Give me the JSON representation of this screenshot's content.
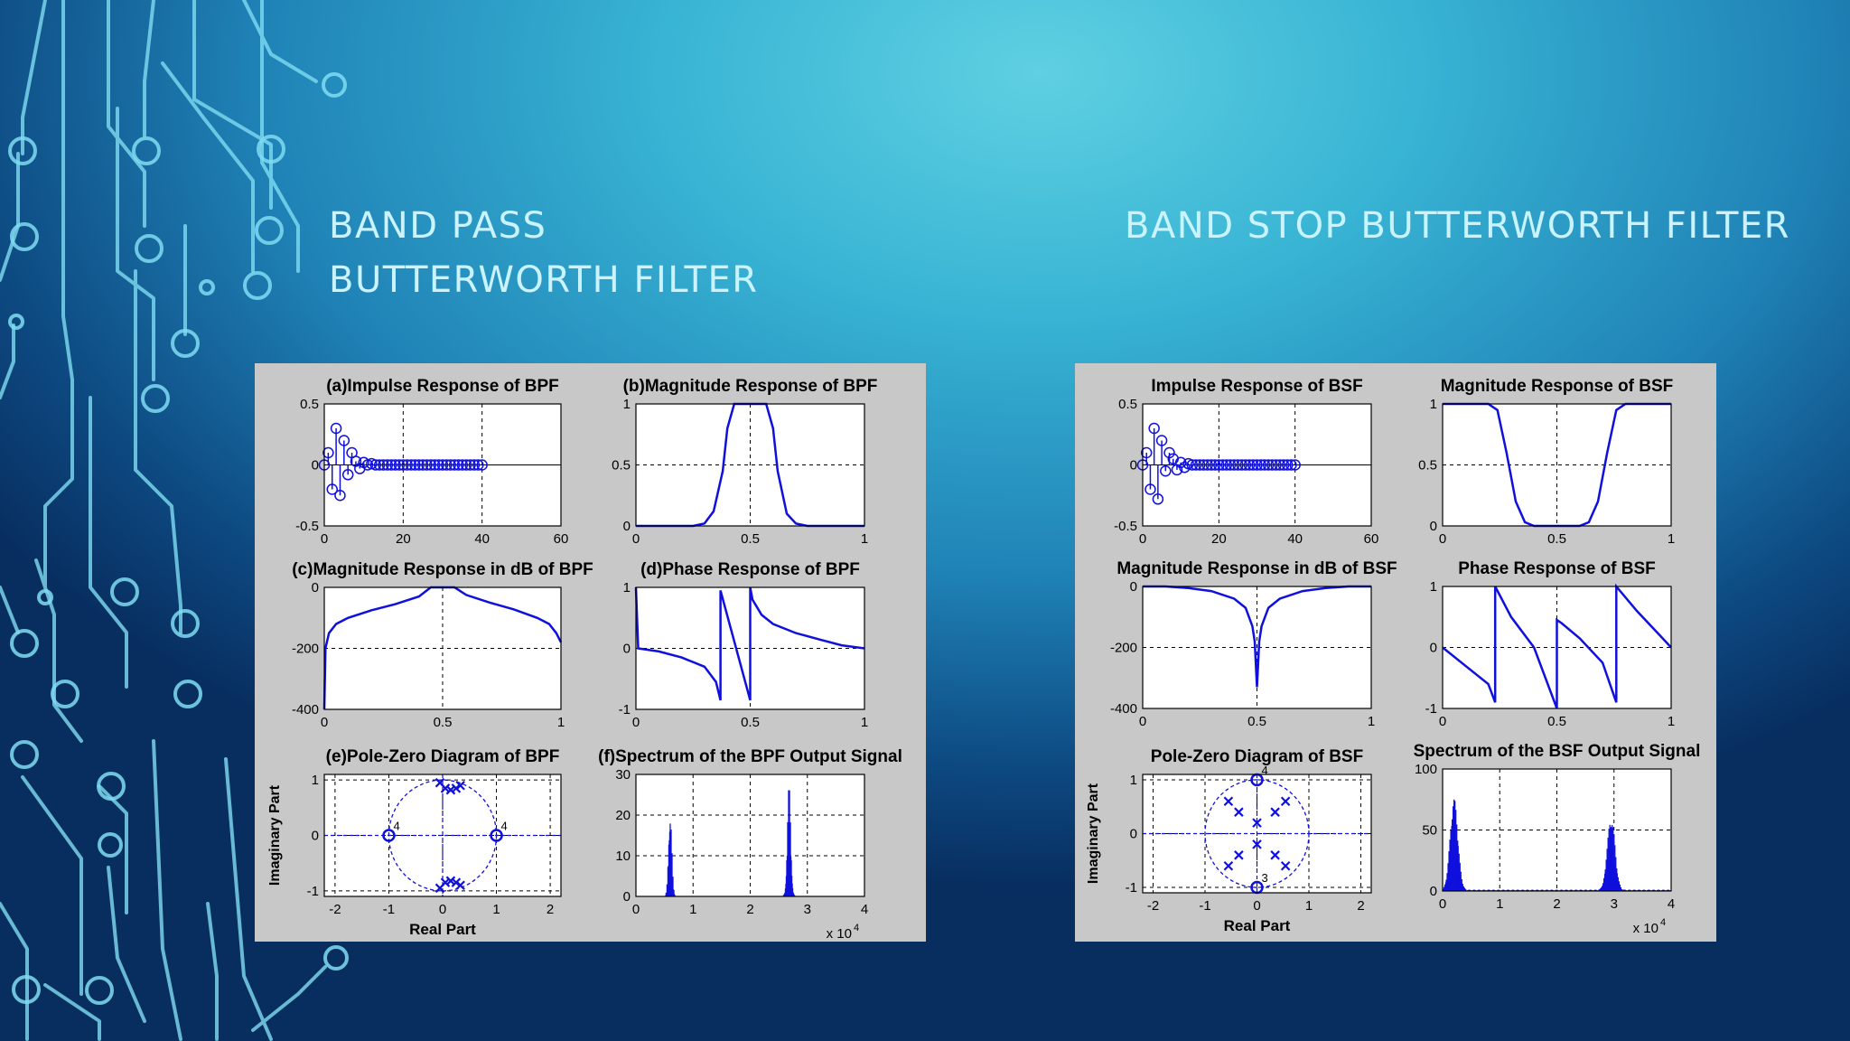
{
  "slide": {
    "left_title": "BAND PASS BUTTERWORTH FILTER",
    "right_title": "BAND STOP BUTTERWORTH FILTER"
  },
  "colors": {
    "trace": "#1010dd",
    "panel": "#c8c8c8",
    "title": "#c8f3ff"
  },
  "chart_data": [
    {
      "id": "bpf-a",
      "type": "stem",
      "title": "(a)Impulse Response of BPF",
      "xlim": [
        0,
        60
      ],
      "ylim": [
        -0.5,
        0.5
      ],
      "xticks": [
        "0",
        "20",
        "40",
        "60"
      ],
      "yticks": [
        "0.5",
        "0",
        "-0.5"
      ],
      "x": [
        0,
        1,
        2,
        3,
        4,
        5,
        6,
        7,
        8,
        9,
        10,
        11,
        12,
        13,
        14,
        15,
        16,
        17,
        18,
        19,
        20,
        21,
        22,
        23,
        24,
        25,
        26,
        27,
        28,
        29,
        30,
        31,
        32,
        33,
        34,
        35,
        36,
        37,
        38,
        39,
        40
      ],
      "values": [
        0,
        0.1,
        -0.2,
        0.3,
        -0.25,
        0.2,
        -0.08,
        0.1,
        0.03,
        -0.03,
        0.02,
        0,
        0.01,
        0,
        0,
        0,
        0,
        0,
        0,
        0,
        0,
        0,
        0,
        0,
        0,
        0,
        0,
        0,
        0,
        0,
        0,
        0,
        0,
        0,
        0,
        0,
        0,
        0,
        0,
        0,
        0
      ]
    },
    {
      "id": "bpf-b",
      "type": "line",
      "title": "(b)Magnitude Response of BPF",
      "xlim": [
        0,
        1
      ],
      "ylim": [
        0,
        1
      ],
      "xticks": [
        "0",
        "0.5",
        "1"
      ],
      "yticks": [
        "1",
        "0.5",
        "0"
      ],
      "x": [
        0,
        0.25,
        0.3,
        0.34,
        0.38,
        0.4,
        0.43,
        0.5,
        0.57,
        0.6,
        0.62,
        0.66,
        0.7,
        0.75,
        1
      ],
      "values": [
        0,
        0,
        0.02,
        0.12,
        0.45,
        0.8,
        1,
        1,
        1,
        0.8,
        0.45,
        0.1,
        0.02,
        0,
        0
      ]
    },
    {
      "id": "bpf-c",
      "type": "line",
      "title": "(c)Magnitude Response in dB of BPF",
      "xlim": [
        0,
        1
      ],
      "ylim": [
        -400,
        0
      ],
      "xticks": [
        "0",
        "0.5",
        "1"
      ],
      "yticks": [
        "0",
        "-200",
        "-400"
      ],
      "x": [
        0,
        0.005,
        0.02,
        0.05,
        0.1,
        0.2,
        0.3,
        0.4,
        0.45,
        0.5,
        0.55,
        0.6,
        0.7,
        0.8,
        0.9,
        0.95,
        0.98,
        1
      ],
      "values": [
        -400,
        -200,
        -150,
        -120,
        -100,
        -75,
        -55,
        -30,
        0,
        0,
        0,
        -25,
        -50,
        -72,
        -100,
        -120,
        -150,
        -180
      ]
    },
    {
      "id": "bpf-d",
      "type": "line",
      "title": "(d)Phase Response of BPF",
      "xlim": [
        0,
        1
      ],
      "ylim": [
        -1,
        1
      ],
      "xticks": [
        "0",
        "0.5",
        "1"
      ],
      "yticks": [
        "1",
        "0",
        "-1"
      ],
      "x": [
        0,
        0.01,
        0.1,
        0.2,
        0.3,
        0.35,
        0.37,
        0.37,
        0.5,
        0.5,
        0.51,
        0.55,
        0.6,
        0.7,
        0.8,
        0.9,
        1
      ],
      "values": [
        1,
        0,
        -0.05,
        -0.15,
        -0.3,
        -0.55,
        -0.85,
        0.95,
        -0.85,
        1,
        0.8,
        0.55,
        0.4,
        0.25,
        0.15,
        0.05,
        0
      ]
    },
    {
      "id": "bpf-e",
      "type": "pole-zero",
      "title": "(e)Pole-Zero Diagram of BPF",
      "xlabel": "Real Part",
      "ylabel": "Imaginary Part",
      "xlim": [
        -2.2,
        2.2
      ],
      "ylim": [
        -1.1,
        1.1
      ],
      "xticks": [
        "-2",
        "-1",
        "0",
        "1",
        "2"
      ],
      "yticks": [
        "1",
        "0",
        "-1"
      ],
      "zeros": [
        {
          "re": -1,
          "im": 0,
          "mult": "4"
        },
        {
          "re": 1,
          "im": 0,
          "mult": "4"
        }
      ],
      "poles": [
        {
          "re": -0.05,
          "im": 0.95
        },
        {
          "re": 0.05,
          "im": 0.85
        },
        {
          "re": 0.15,
          "im": 0.82
        },
        {
          "re": 0.25,
          "im": 0.85
        },
        {
          "re": 0.33,
          "im": 0.9
        },
        {
          "re": -0.05,
          "im": -0.95
        },
        {
          "re": 0.05,
          "im": -0.85
        },
        {
          "re": 0.15,
          "im": -0.82
        },
        {
          "re": 0.25,
          "im": -0.85
        },
        {
          "re": 0.33,
          "im": -0.9
        }
      ]
    },
    {
      "id": "bpf-f",
      "type": "spectrum",
      "title": "(f)Spectrum of the BPF Output Signal",
      "xlim": [
        0,
        4
      ],
      "ylim": [
        0,
        30
      ],
      "xticks": [
        "0",
        "1",
        "2",
        "3",
        "4"
      ],
      "yticks": [
        "30",
        "20",
        "10",
        "0"
      ],
      "xscale": "x 10",
      "xscale_exp": "4",
      "peaks": [
        {
          "x": 0.6,
          "height": 20,
          "width": 0.05
        },
        {
          "x": 2.68,
          "height": 27,
          "width": 0.05
        }
      ]
    },
    {
      "id": "bsf-a",
      "type": "stem",
      "title": "Impulse Response of BSF",
      "xlim": [
        0,
        60
      ],
      "ylim": [
        -0.5,
        0.5
      ],
      "xticks": [
        "0",
        "20",
        "40",
        "60"
      ],
      "yticks": [
        "0.5",
        "0",
        "-0.5"
      ],
      "x": [
        0,
        1,
        2,
        3,
        4,
        5,
        6,
        7,
        8,
        9,
        10,
        11,
        12,
        13,
        14,
        15,
        16,
        17,
        18,
        19,
        20,
        21,
        22,
        23,
        24,
        25,
        26,
        27,
        28,
        29,
        30,
        31,
        32,
        33,
        34,
        35,
        36,
        37,
        38,
        39,
        40
      ],
      "values": [
        0,
        0.1,
        -0.2,
        0.3,
        -0.28,
        0.2,
        -0.05,
        0.1,
        0.05,
        -0.04,
        0.02,
        -0.02,
        0.01,
        0,
        0,
        0,
        0,
        0,
        0,
        0,
        0,
        0,
        0,
        0,
        0,
        0,
        0,
        0,
        0,
        0,
        0,
        0,
        0,
        0,
        0,
        0,
        0,
        0,
        0,
        0,
        0
      ]
    },
    {
      "id": "bsf-b",
      "type": "line",
      "title": "Magnitude Response of BSF",
      "xlim": [
        0,
        1
      ],
      "ylim": [
        0,
        1
      ],
      "xticks": [
        "0",
        "0.5",
        "1"
      ],
      "yticks": [
        "1",
        "0.5",
        "0"
      ],
      "x": [
        0,
        0.2,
        0.24,
        0.28,
        0.32,
        0.36,
        0.4,
        0.6,
        0.64,
        0.68,
        0.72,
        0.76,
        0.8,
        1
      ],
      "values": [
        1,
        1,
        0.95,
        0.6,
        0.2,
        0.03,
        0,
        0,
        0.03,
        0.2,
        0.6,
        0.95,
        1,
        1
      ]
    },
    {
      "id": "bsf-c",
      "type": "line",
      "title": "Magnitude Response in dB of BSF",
      "xlim": [
        0,
        1
      ],
      "ylim": [
        -400,
        0
      ],
      "xticks": [
        "0",
        "0.5",
        "1"
      ],
      "yticks": [
        "0",
        "-200",
        "-400"
      ],
      "x": [
        0,
        0.1,
        0.2,
        0.3,
        0.4,
        0.45,
        0.48,
        0.49,
        0.5,
        0.51,
        0.52,
        0.55,
        0.6,
        0.7,
        0.8,
        0.9,
        1
      ],
      "values": [
        0,
        0,
        -5,
        -15,
        -40,
        -70,
        -130,
        -180,
        -330,
        -180,
        -130,
        -70,
        -40,
        -15,
        -5,
        0,
        0
      ]
    },
    {
      "id": "bsf-d",
      "type": "line",
      "title": "Phase Response of BSF",
      "xlim": [
        0,
        1
      ],
      "ylim": [
        -1,
        1
      ],
      "xticks": [
        "0",
        "0.5",
        "1"
      ],
      "yticks": [
        "1",
        "0",
        "-1"
      ],
      "x": [
        0,
        0.1,
        0.2,
        0.23,
        0.23,
        0.3,
        0.4,
        0.5,
        0.5,
        0.52,
        0.6,
        0.7,
        0.76,
        0.76,
        0.85,
        0.95,
        1
      ],
      "values": [
        0,
        -0.3,
        -0.6,
        -0.9,
        1,
        0.5,
        0,
        -1,
        0.45,
        0.4,
        0.15,
        -0.25,
        -0.9,
        1,
        0.6,
        0.2,
        0
      ]
    },
    {
      "id": "bsf-e",
      "type": "pole-zero",
      "title": "Pole-Zero Diagram of BSF",
      "xlabel": "Real Part",
      "ylabel": "Imaginary Part",
      "xlim": [
        -2.2,
        2.2
      ],
      "ylim": [
        -1.1,
        1.1
      ],
      "xticks": [
        "-2",
        "-1",
        "0",
        "1",
        "2"
      ],
      "yticks": [
        "1",
        "0",
        "-1"
      ],
      "zeros": [
        {
          "re": 0,
          "im": 1,
          "mult": "4"
        },
        {
          "re": 0,
          "im": -1,
          "mult": "3"
        }
      ],
      "poles": [
        {
          "re": -0.55,
          "im": 0.6
        },
        {
          "re": -0.35,
          "im": 0.4
        },
        {
          "re": 0,
          "im": 0.2
        },
        {
          "re": 0,
          "im": -0.2
        },
        {
          "re": -0.35,
          "im": -0.4
        },
        {
          "re": -0.55,
          "im": -0.6
        },
        {
          "re": 0.55,
          "im": 0.6
        },
        {
          "re": 0.35,
          "im": 0.4
        },
        {
          "re": 0.35,
          "im": -0.4
        },
        {
          "re": 0.55,
          "im": -0.6
        }
      ]
    },
    {
      "id": "bsf-f",
      "type": "spectrum",
      "title": "Spectrum of the BSF Output Signal",
      "xlim": [
        0,
        4
      ],
      "ylim": [
        0,
        100
      ],
      "xticks": [
        "0",
        "1",
        "2",
        "3",
        "4"
      ],
      "yticks": [
        "100",
        "50",
        "0"
      ],
      "xscale": "x 10",
      "xscale_exp": "4",
      "peaks": [
        {
          "x": 0.2,
          "height": 75,
          "width": 0.12
        },
        {
          "x": 2.95,
          "height": 60,
          "width": 0.12
        }
      ]
    }
  ]
}
